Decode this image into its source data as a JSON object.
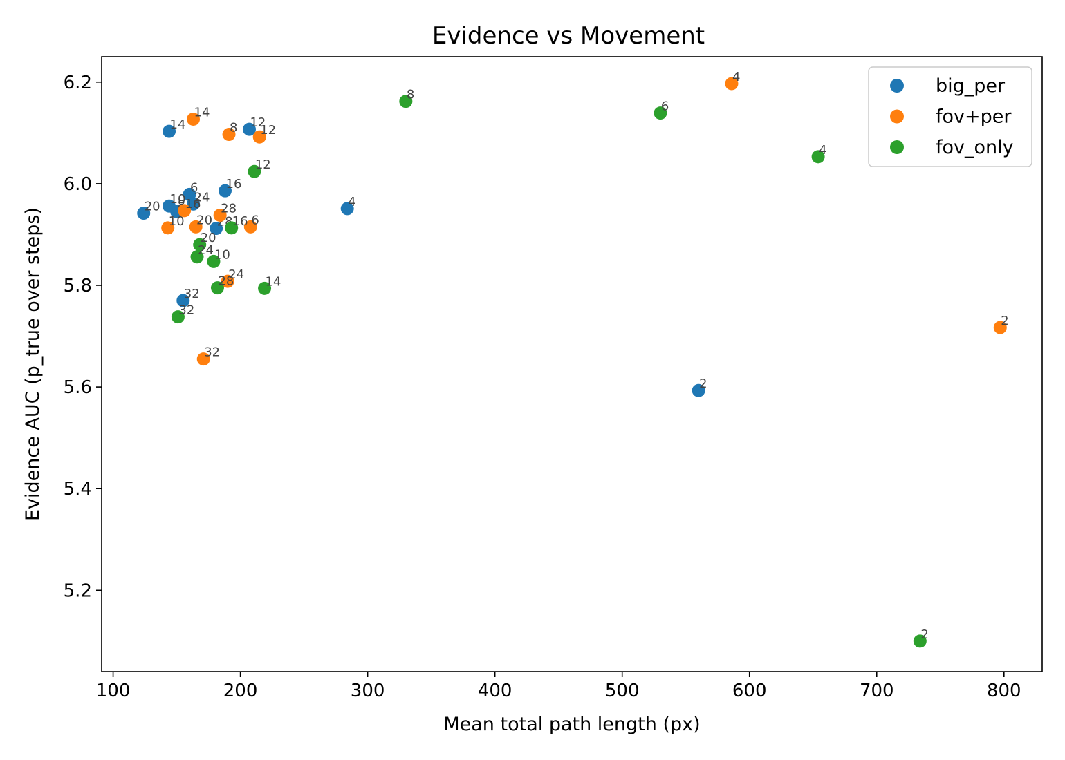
{
  "chart_data": {
    "type": "scatter",
    "title": "Evidence vs Movement",
    "xlabel": "Mean total path length (px)",
    "ylabel": "Evidence AUC (p_true over steps)",
    "xlim": [
      91,
      830
    ],
    "ylim": [
      5.04,
      6.25
    ],
    "xticks": [
      100,
      200,
      300,
      400,
      500,
      600,
      700,
      800
    ],
    "xtick_labels": [
      "100",
      "200",
      "300",
      "400",
      "500",
      "600",
      "700",
      "800"
    ],
    "yticks": [
      5.2,
      5.4,
      5.6,
      5.8,
      6.0,
      6.2
    ],
    "ytick_labels": [
      "5.2",
      "5.4",
      "5.6",
      "5.8",
      "6.0",
      "6.2"
    ],
    "grid": false,
    "legend_position": "top-right",
    "series": [
      {
        "name": "big_per",
        "color": "#1f77b4",
        "points": [
          {
            "x": 560,
            "y": 5.593,
            "label": "2"
          },
          {
            "x": 284,
            "y": 5.951,
            "label": "4"
          },
          {
            "x": 160,
            "y": 5.979,
            "label": "6"
          },
          {
            "x": 150,
            "y": 5.945,
            "label": "8"
          },
          {
            "x": 144,
            "y": 5.956,
            "label": "10"
          },
          {
            "x": 207,
            "y": 6.107,
            "label": "12"
          },
          {
            "x": 144,
            "y": 6.103,
            "label": "14"
          },
          {
            "x": 188,
            "y": 5.986,
            "label": "16"
          },
          {
            "x": 124,
            "y": 5.942,
            "label": "20"
          },
          {
            "x": 163,
            "y": 5.96,
            "label": "24"
          },
          {
            "x": 181,
            "y": 5.912,
            "label": "28"
          },
          {
            "x": 155,
            "y": 5.77,
            "label": "32"
          }
        ]
      },
      {
        "name": "fov+per",
        "color": "#ff7f0e",
        "points": [
          {
            "x": 797,
            "y": 5.717,
            "label": "2"
          },
          {
            "x": 586,
            "y": 6.197,
            "label": "4"
          },
          {
            "x": 208,
            "y": 5.915,
            "label": "6"
          },
          {
            "x": 191,
            "y": 6.097,
            "label": "8"
          },
          {
            "x": 143,
            "y": 5.913,
            "label": "10"
          },
          {
            "x": 215,
            "y": 6.092,
            "label": "12"
          },
          {
            "x": 163,
            "y": 6.127,
            "label": "14"
          },
          {
            "x": 156,
            "y": 5.947,
            "label": "16"
          },
          {
            "x": 165,
            "y": 5.915,
            "label": "20"
          },
          {
            "x": 190,
            "y": 5.808,
            "label": "24"
          },
          {
            "x": 184,
            "y": 5.938,
            "label": "28"
          },
          {
            "x": 171,
            "y": 5.655,
            "label": "32"
          }
        ]
      },
      {
        "name": "fov_only",
        "color": "#2ca02c",
        "points": [
          {
            "x": 734,
            "y": 5.1,
            "label": "2"
          },
          {
            "x": 654,
            "y": 6.053,
            "label": "4"
          },
          {
            "x": 530,
            "y": 6.139,
            "label": "6"
          },
          {
            "x": 330,
            "y": 6.162,
            "label": "8"
          },
          {
            "x": 179,
            "y": 5.847,
            "label": "10"
          },
          {
            "x": 211,
            "y": 6.024,
            "label": "12"
          },
          {
            "x": 219,
            "y": 5.794,
            "label": "14"
          },
          {
            "x": 193,
            "y": 5.913,
            "label": "16"
          },
          {
            "x": 168,
            "y": 5.88,
            "label": "20"
          },
          {
            "x": 166,
            "y": 5.856,
            "label": "24"
          },
          {
            "x": 182,
            "y": 5.795,
            "label": "28"
          },
          {
            "x": 151,
            "y": 5.738,
            "label": "32"
          }
        ]
      }
    ]
  }
}
